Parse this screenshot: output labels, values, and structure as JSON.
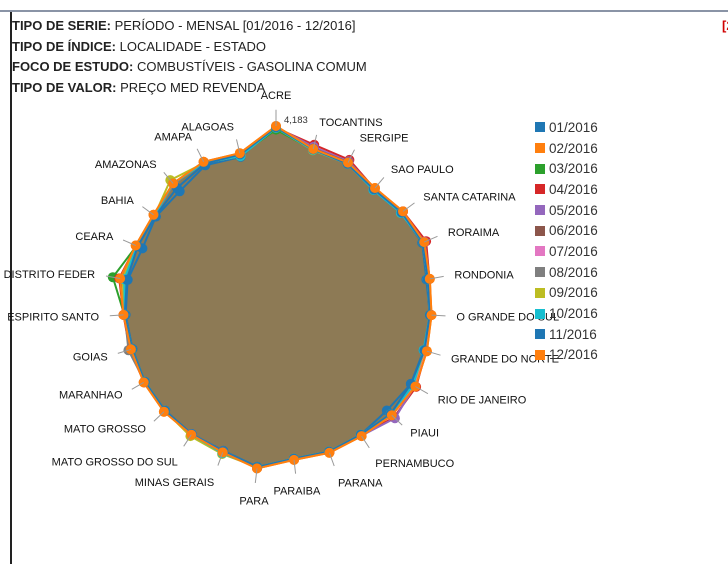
{
  "info": {
    "serie_label": "TIPO DE SERIE:",
    "serie_value": "PERÍODO - MENSAL [01/2016 - 12/2016]",
    "indice_label": "TIPO DE ÍNDICE:",
    "indice_value": "LOCALIDADE - ESTADO",
    "foco_label": "FOCO DE ESTUDO:",
    "foco_value": "COMBUSTÍVEIS - GASOLINA COMUM",
    "valor_label": "TIPO DE VALOR:",
    "valor_value": "PREÇO MED REVENDA"
  },
  "corner_text": "[2",
  "chart_data": {
    "type": "radar",
    "categories": [
      "ACRE",
      "TOCANTINS",
      "SERGIPE",
      "SAO PAULO",
      "SANTA CATARINA",
      "RORAIMA",
      "RONDONIA",
      "RIO GRANDE DO SUL",
      "RIO GRANDE DO NORTE",
      "RIO DE JANEIRO",
      "PIAUI",
      "PERNAMBUCO",
      "PARANA",
      "PARAIBA",
      "PARA",
      "MINAS GERAIS",
      "MATO GROSSO DO SUL",
      "MATO GROSSO",
      "MARANHAO",
      "GOIAS",
      "ESPIRITO SANTO",
      "DISTRITO FEDERAL",
      "CEARA",
      "BAHIA",
      "AMAZONAS",
      "AMAPA",
      "ALAGOAS"
    ],
    "category_labels": [
      "ACRE",
      "TOCANTINS",
      "SERGIPE",
      "SAO PAULO",
      "SANTA CATARINA",
      "RORAIMA",
      "RONDONIA",
      "O GRANDE DO SUL",
      "GRANDE DO NORTE",
      "RIO DE JANEIRO",
      "PIAUI",
      "PERNAMBUCO",
      "PARANA",
      "PARAIBA",
      "PARA",
      "MINAS GERAIS",
      "MATO GROSSO DO SUL",
      "MATO GROSSO",
      "MARANHAO",
      "GOIAS",
      "ESPIRITO SANTO",
      "DISTRITO FEDER",
      "CEARA",
      "BAHIA",
      "AMAZONAS",
      "AMAPA",
      "ALAGOAS"
    ],
    "annotation": {
      "category": "ACRE",
      "text": "4,183"
    },
    "rmax": 4.183,
    "base_values": [
      4.183,
      3.75,
      3.73,
      3.58,
      3.68,
      3.75,
      3.63,
      3.62,
      3.66,
      3.74,
      3.7,
      3.62,
      3.63,
      3.6,
      3.8,
      3.62,
      3.58,
      3.58,
      3.55,
      3.52,
      3.55,
      3.68,
      3.55,
      3.55,
      3.72,
      3.75,
      3.65
    ],
    "series": [
      {
        "name": "01/2016",
        "color": "#1f77b4",
        "values": [
          4.18,
          3.72,
          3.73,
          3.52,
          3.62,
          3.7,
          3.55,
          3.58,
          3.58,
          3.62,
          3.54,
          3.58,
          3.62,
          3.58,
          3.76,
          3.58,
          3.56,
          3.54,
          3.52,
          3.48,
          3.5,
          3.5,
          3.38,
          3.48,
          3.48,
          3.66,
          3.56
        ]
      },
      {
        "name": "02/2016",
        "color": "#ff7f0e",
        "values": [
          4.18,
          3.75,
          3.73,
          3.58,
          3.68,
          3.75,
          3.63,
          3.62,
          3.66,
          3.74,
          3.7,
          3.62,
          3.63,
          3.6,
          3.8,
          3.62,
          3.58,
          3.58,
          3.55,
          3.52,
          3.55,
          3.68,
          3.55,
          3.55,
          3.72,
          3.75,
          3.65
        ]
      },
      {
        "name": "03/2016",
        "color": "#2ca02c",
        "values": [
          4.1,
          3.73,
          3.72,
          3.55,
          3.64,
          3.72,
          3.6,
          3.6,
          3.63,
          3.7,
          3.66,
          3.6,
          3.61,
          3.58,
          3.78,
          3.62,
          3.6,
          3.56,
          3.53,
          3.5,
          3.53,
          3.85,
          3.53,
          3.53,
          3.7,
          3.72,
          3.6
        ]
      },
      {
        "name": "04/2016",
        "color": "#d62728",
        "values": [
          4.14,
          3.85,
          3.8,
          3.56,
          3.68,
          3.8,
          3.62,
          3.61,
          3.64,
          3.76,
          3.77,
          3.61,
          3.62,
          3.59,
          3.79,
          3.61,
          3.57,
          3.57,
          3.54,
          3.55,
          3.55,
          3.7,
          3.54,
          3.54,
          3.71,
          3.74,
          3.62
        ]
      },
      {
        "name": "05/2016",
        "color": "#9467bd",
        "values": [
          4.16,
          3.8,
          3.76,
          3.56,
          3.66,
          3.76,
          3.62,
          3.61,
          3.64,
          3.72,
          3.8,
          3.61,
          3.62,
          3.59,
          3.79,
          3.61,
          3.57,
          3.57,
          3.54,
          3.52,
          3.54,
          3.66,
          3.54,
          3.54,
          3.71,
          3.74,
          3.62
        ]
      },
      {
        "name": "06/2016",
        "color": "#8c564b",
        "values": [
          4.16,
          3.76,
          3.74,
          3.56,
          3.66,
          3.74,
          3.62,
          3.61,
          3.64,
          3.72,
          3.7,
          3.61,
          3.62,
          3.59,
          3.79,
          3.61,
          3.57,
          3.57,
          3.54,
          3.52,
          3.54,
          3.65,
          3.54,
          3.54,
          3.71,
          3.74,
          3.62
        ]
      },
      {
        "name": "07/2016",
        "color": "#e377c2",
        "values": [
          4.15,
          3.74,
          3.72,
          3.55,
          3.64,
          3.73,
          3.6,
          3.6,
          3.62,
          3.7,
          3.68,
          3.6,
          3.61,
          3.58,
          3.78,
          3.6,
          3.56,
          3.56,
          3.53,
          3.51,
          3.53,
          3.62,
          3.53,
          3.53,
          3.7,
          3.73,
          3.6
        ]
      },
      {
        "name": "08/2016",
        "color": "#7f7f7f",
        "values": [
          4.14,
          3.72,
          3.7,
          3.54,
          3.62,
          3.72,
          3.58,
          3.58,
          3.6,
          3.68,
          3.66,
          3.58,
          3.6,
          3.57,
          3.77,
          3.6,
          3.56,
          3.55,
          3.52,
          3.58,
          3.52,
          3.6,
          3.52,
          3.52,
          3.7,
          3.72,
          3.58
        ]
      },
      {
        "name": "09/2016",
        "color": "#bcbd22",
        "values": [
          4.14,
          3.72,
          3.7,
          3.54,
          3.62,
          3.72,
          3.58,
          3.58,
          3.6,
          3.68,
          3.66,
          3.58,
          3.6,
          3.57,
          3.77,
          3.66,
          3.62,
          3.55,
          3.52,
          3.5,
          3.52,
          3.62,
          3.52,
          3.52,
          3.82,
          3.72,
          3.58
        ]
      },
      {
        "name": "10/2016",
        "color": "#17becf",
        "values": [
          4.14,
          3.73,
          3.7,
          3.52,
          3.62,
          3.72,
          3.58,
          3.58,
          3.58,
          3.68,
          3.66,
          3.58,
          3.6,
          3.57,
          3.77,
          3.64,
          3.58,
          3.55,
          3.52,
          3.5,
          3.52,
          3.58,
          3.52,
          3.52,
          3.72,
          3.72,
          3.58
        ]
      },
      {
        "name": "11/2016",
        "color": "#1f77b4",
        "values": [
          4.15,
          3.74,
          3.7,
          3.54,
          3.64,
          3.72,
          3.58,
          3.58,
          3.6,
          3.62,
          3.66,
          3.58,
          3.6,
          3.57,
          3.77,
          3.6,
          3.56,
          3.55,
          3.52,
          3.5,
          3.52,
          3.52,
          3.5,
          3.5,
          3.58,
          3.7,
          3.62
        ]
      },
      {
        "name": "12/2016",
        "color": "#ff7f0e",
        "values": [
          4.183,
          3.75,
          3.73,
          3.58,
          3.68,
          3.75,
          3.63,
          3.62,
          3.66,
          3.74,
          3.7,
          3.62,
          3.63,
          3.6,
          3.8,
          3.62,
          3.58,
          3.58,
          3.55,
          3.52,
          3.55,
          3.68,
          3.55,
          3.55,
          3.72,
          3.75,
          3.65
        ]
      }
    ],
    "fill_color": "#8d7a55",
    "legend_position": "right"
  }
}
